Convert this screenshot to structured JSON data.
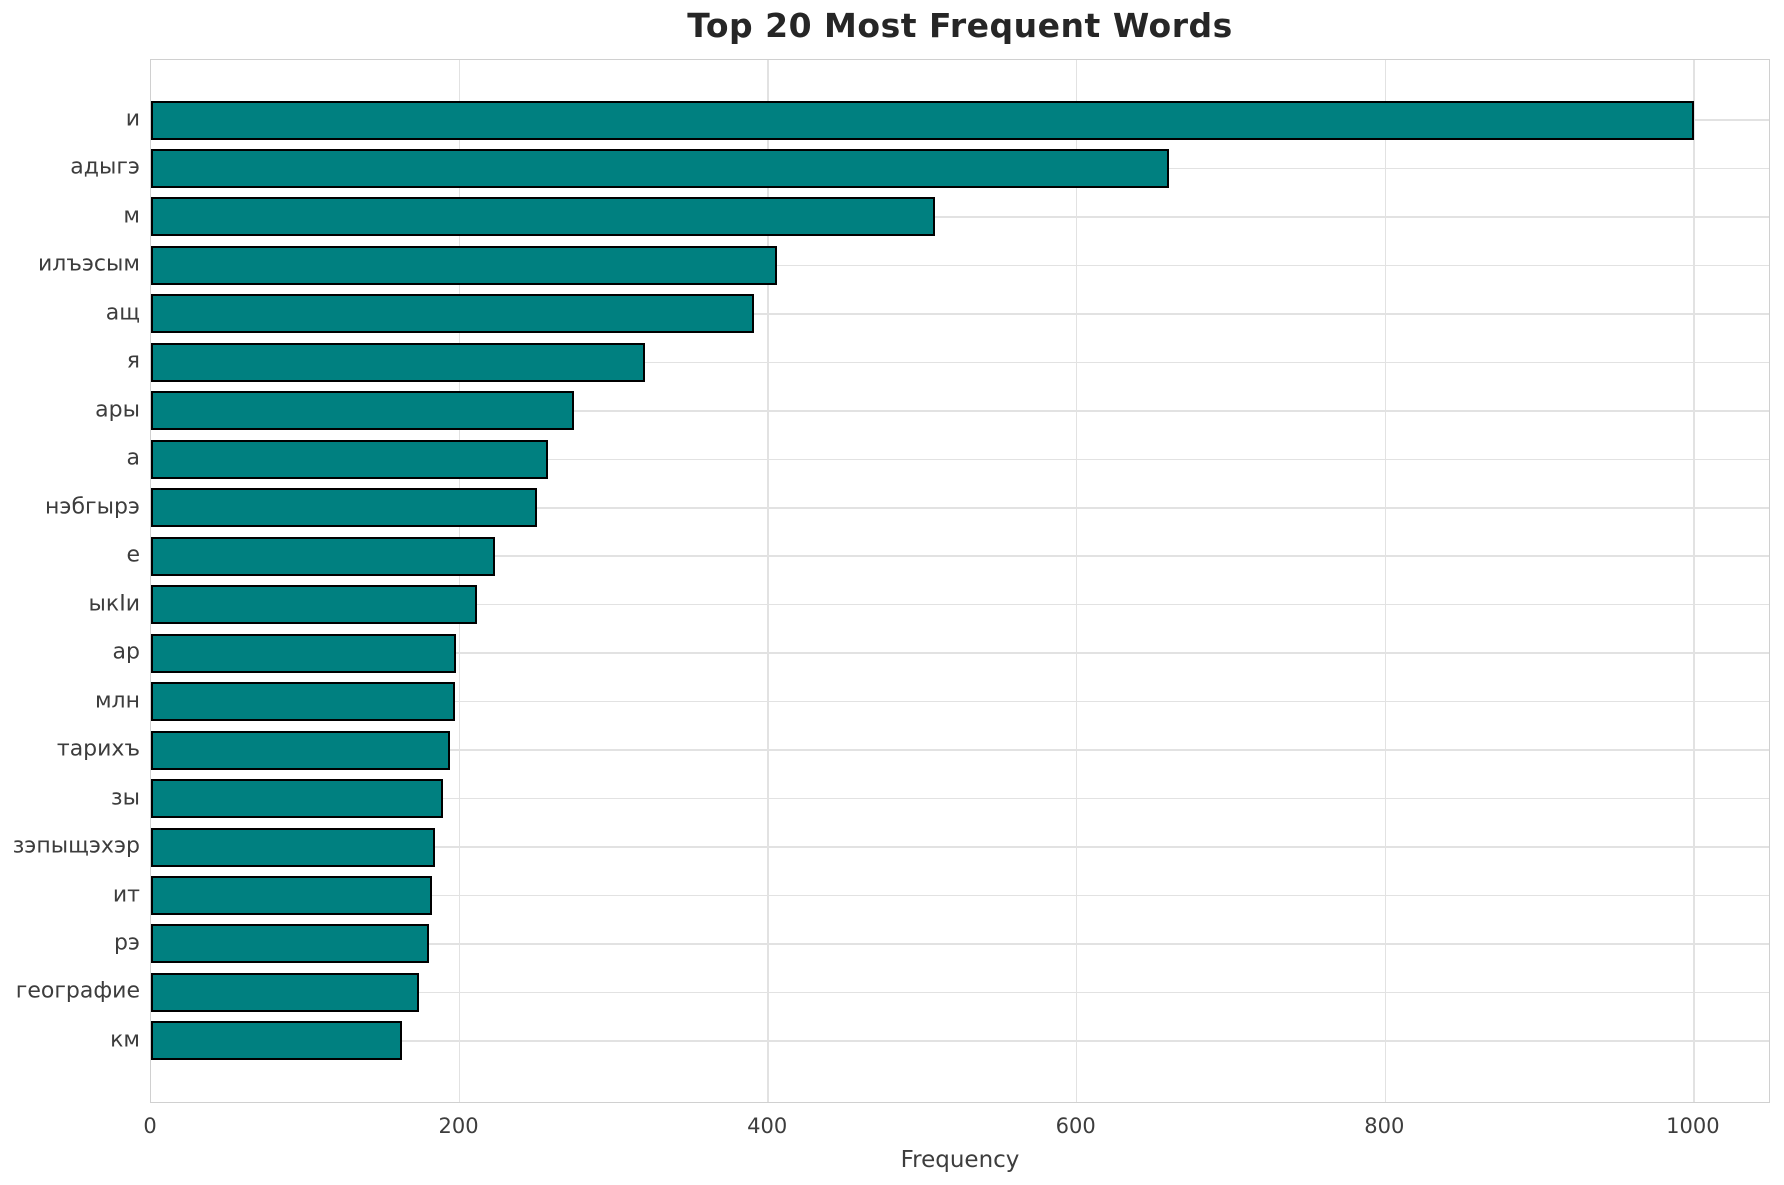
{
  "chart_data": {
    "type": "bar",
    "orientation": "horizontal",
    "title": "Top 20 Most Frequent Words",
    "xlabel": "Frequency",
    "ylabel": "",
    "categories": [
      "и",
      "адыгэ",
      "м",
      "илъэсым",
      "ащ",
      "я",
      "ары",
      "а",
      "нэбгырэ",
      "е",
      "ыкIи",
      "ар",
      "млн",
      "тарихъ",
      "зы",
      "зэпыщэхэр",
      "ит",
      "рэ",
      "географие",
      "км"
    ],
    "values": [
      1000,
      660,
      508,
      406,
      391,
      320,
      274,
      257,
      250,
      223,
      211,
      198,
      197,
      194,
      189,
      184,
      182,
      180,
      174,
      163
    ],
    "xticks": [
      0,
      200,
      400,
      600,
      800,
      1000
    ],
    "xlim": [
      0,
      1050
    ],
    "grid": true,
    "legend": null,
    "colors": {
      "bar_fill": "#008080",
      "bar_edge": "#000000",
      "gridline": "#e2e2e2",
      "spine": "#d0d0d0",
      "title_text": "#262626",
      "tick_text": "#3d3d3d"
    }
  }
}
